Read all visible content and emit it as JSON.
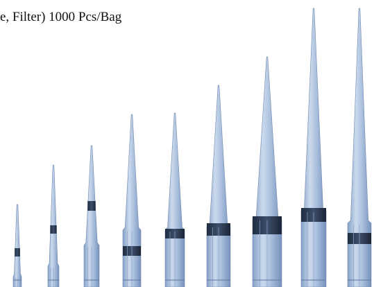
{
  "caption": "e, Filter) 1000 Pcs/Bag"
}
